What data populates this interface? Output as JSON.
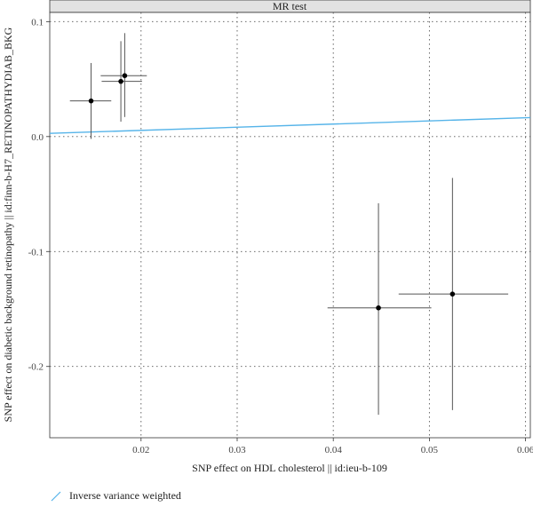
{
  "chart_data": {
    "type": "scatter",
    "title": "MR test",
    "xlabel": "SNP effect on HDL cholesterol || id:ieu-b-109",
    "ylabel": "SNP effect on diabetic background retinopathy || id:finn-b-H7_RETINOPATHYDIAB_BKG",
    "xlim": [
      0.0105,
      0.0605
    ],
    "ylim": [
      -0.262,
      0.108
    ],
    "x_ticks": [
      0.02,
      0.03,
      0.04,
      0.05,
      0.06
    ],
    "x_tick_labels": [
      "0.02",
      "0.03",
      "0.04",
      "0.05",
      "0.06"
    ],
    "y_ticks": [
      0.1,
      0.0,
      -0.1,
      -0.2
    ],
    "y_tick_labels": [
      "0.1",
      "0.0",
      "-0.1",
      "-0.2"
    ],
    "grid": true,
    "points": [
      {
        "x": 0.0148,
        "y": 0.031,
        "x_lo": 0.0126,
        "x_hi": 0.0169,
        "y_lo": -0.002,
        "y_hi": 0.064
      },
      {
        "x": 0.0179,
        "y": 0.048,
        "x_lo": 0.0159,
        "x_hi": 0.0201,
        "y_lo": 0.013,
        "y_hi": 0.083
      },
      {
        "x": 0.0183,
        "y": 0.053,
        "x_lo": 0.0158,
        "x_hi": 0.0206,
        "y_lo": 0.017,
        "y_hi": 0.09
      },
      {
        "x": 0.0447,
        "y": -0.149,
        "x_lo": 0.0394,
        "x_hi": 0.0502,
        "y_lo": -0.242,
        "y_hi": -0.058
      },
      {
        "x": 0.0524,
        "y": -0.137,
        "x_lo": 0.0468,
        "x_hi": 0.0582,
        "y_lo": -0.238,
        "y_hi": -0.036
      }
    ],
    "fit_line": {
      "name": "Inverse variance weighted",
      "color": "#56B4E9",
      "x": [
        0.0105,
        0.0605
      ],
      "y": [
        0.0028,
        0.0165
      ]
    },
    "legend_position": "bottom-left"
  }
}
